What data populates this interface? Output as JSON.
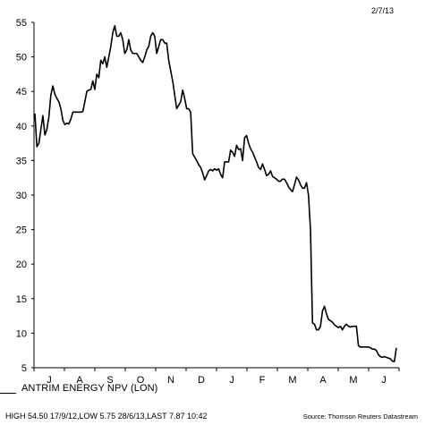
{
  "date": "2/7/13",
  "legend": "ANTRIM ENERGY NPV (LON)",
  "stats": "HIGH 54.50 17/9/12,LOW 5.75 28/6/13,LAST 7.87 10:42",
  "source": "Source: Thomson Reuters Datastream",
  "chart_data": {
    "type": "line",
    "title": "",
    "xlabel": "",
    "ylabel": "",
    "ylim": [
      5,
      55
    ],
    "yticks": [
      5,
      10,
      15,
      20,
      25,
      30,
      35,
      40,
      45,
      50,
      55
    ],
    "months": [
      "J",
      "A",
      "S",
      "O",
      "N",
      "D",
      "J",
      "F",
      "M",
      "A",
      "M",
      "J"
    ],
    "grid": false,
    "line_color": "#000000",
    "series": [
      {
        "values": [
          41.8,
          37,
          37.5,
          39.5,
          41.5,
          38.7,
          39.5,
          41.3,
          44.5,
          45.8,
          44.6,
          44,
          43.5,
          42.5,
          40.8,
          40.2,
          40.4,
          40.3,
          41,
          42,
          42,
          42,
          42,
          42,
          42.1,
          43.5,
          45,
          45.2,
          45.3,
          46.5,
          45.3,
          47.5,
          47,
          49.5,
          49,
          50,
          48.5,
          50,
          51.5,
          53.5,
          54.5,
          53,
          53,
          53.5,
          52.5,
          50.5,
          51,
          52.5,
          51,
          50.5,
          50.5,
          50.5,
          50,
          49.5,
          49.2,
          50,
          51,
          51.5,
          53,
          53.5,
          53,
          50.5,
          51.5,
          52.5,
          52.5,
          52,
          52,
          49.5,
          48,
          46.5,
          44.5,
          42.5,
          43,
          43.5,
          45.2,
          44,
          42.5,
          42.5,
          42,
          36,
          35.5,
          35,
          34.4,
          34,
          33.2,
          32.2,
          32.8,
          33.5,
          33.7,
          33.5,
          33.8,
          33.6,
          33.8,
          33,
          32.5,
          34.8,
          34.8,
          34.8,
          36.5,
          36.2,
          35.6,
          37.2,
          36.6,
          36.7,
          35,
          38.3,
          38.6,
          37.5,
          36.7,
          36.2,
          35.5,
          34.8,
          34,
          33.7,
          34.5,
          33.7,
          32.8,
          33,
          33.5,
          32.7,
          32.5,
          32.3,
          32,
          32,
          32.3,
          32.3,
          31.8,
          31.2,
          30.8,
          30.5,
          31.5,
          32.6,
          32.2,
          31.5,
          31,
          31,
          31.8,
          30,
          25,
          11.5,
          11.3,
          10.5,
          10.5,
          11,
          13.2,
          13.9,
          12.8,
          12,
          11.8,
          11.6,
          11.2,
          11,
          10.8,
          11,
          10.5,
          11,
          11.3,
          11,
          10.9,
          11,
          11,
          11,
          8.2,
          8,
          8,
          8,
          8,
          8,
          7.9,
          7.7,
          7.7,
          7.5,
          6.9,
          6.6,
          6.5,
          6.6,
          6.5,
          6.4,
          6.3,
          5.95,
          5.9,
          7.87
        ]
      }
    ]
  }
}
